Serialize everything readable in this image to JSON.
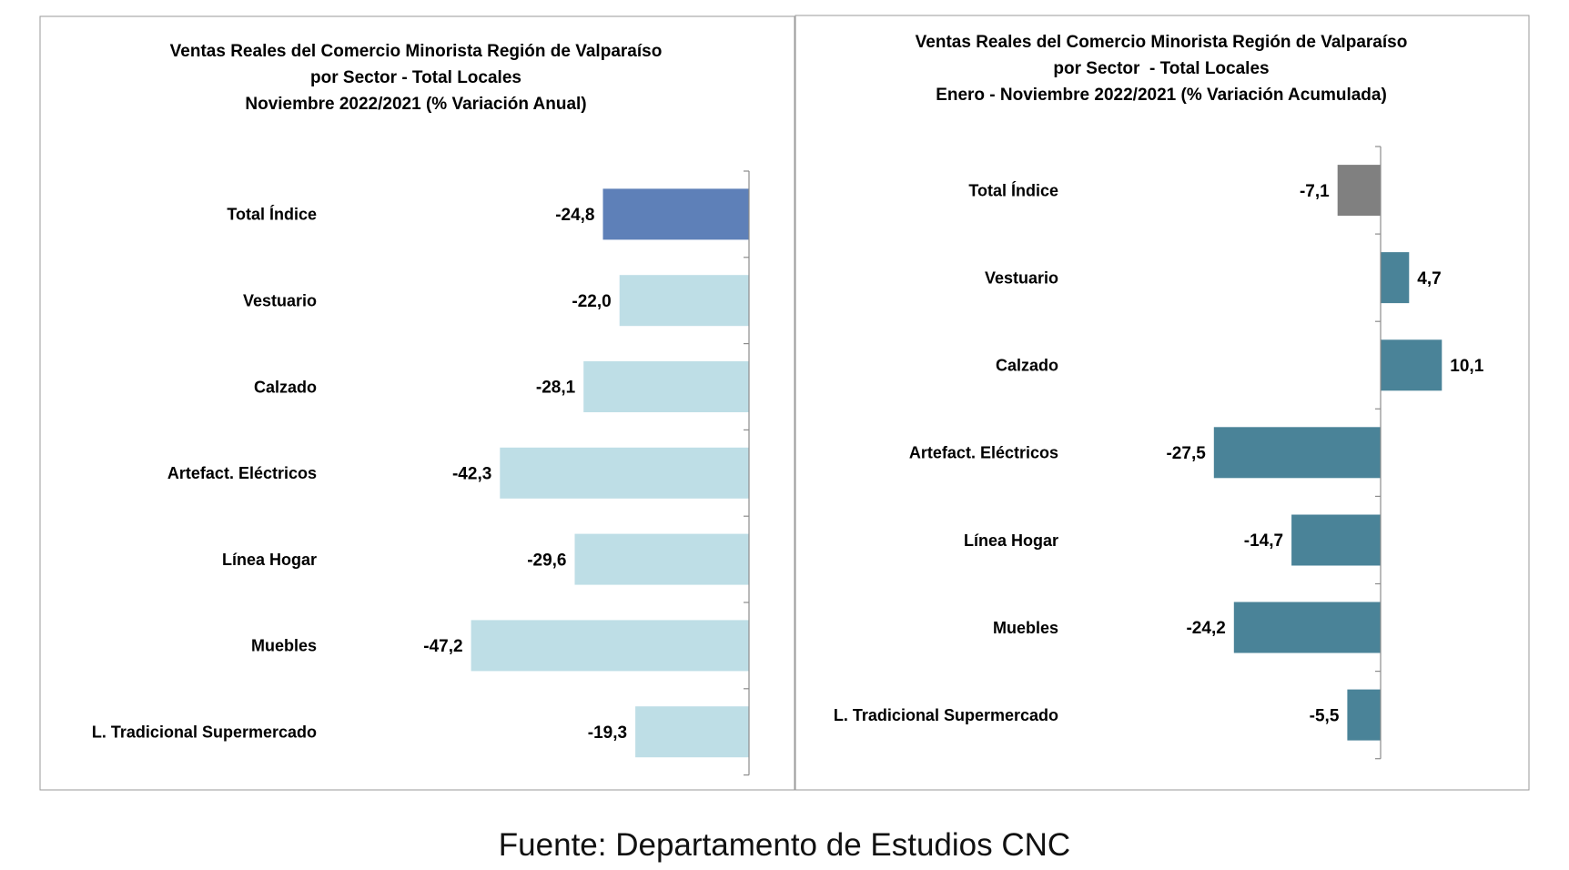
{
  "footer": {
    "source": "Fuente: Departamento de Estudios CNC"
  },
  "chart_data": [
    {
      "type": "bar",
      "orientation": "horizontal",
      "title_lines": [
        "Ventas Reales del Comercio Minorista Región de Valparaíso",
        "por Sector - Total Locales",
        "Noviembre 2022/2021 (% Variación Anual)"
      ],
      "categories": [
        "Total Índice",
        "Vestuario",
        "Calzado",
        "Artefact. Eléctricos",
        "Línea Hogar",
        "Muebles",
        "L. Tradicional Supermercado"
      ],
      "values": [
        -24.8,
        -22.0,
        -28.1,
        -42.3,
        -29.6,
        -47.2,
        -19.3
      ],
      "data_labels": [
        "-24,8",
        "-22,0",
        "-28,1",
        "-42,3",
        "-29,6",
        "-47,2",
        "-19,3"
      ],
      "bar_colors": [
        "#5E80B8",
        "#BEDEE6",
        "#BEDEE6",
        "#BEDEE6",
        "#BEDEE6",
        "#BEDEE6",
        "#BEDEE6"
      ],
      "grid": false,
      "legend": "none"
    },
    {
      "type": "bar",
      "orientation": "horizontal",
      "title_lines": [
        "Ventas Reales del Comercio Minorista Región de Valparaíso",
        "por Sector  - Total Locales",
        "Enero - Noviembre 2022/2021 (% Variación Acumulada)"
      ],
      "categories": [
        "Total Índice",
        "Vestuario",
        "Calzado",
        "Artefact. Eléctricos",
        "Línea Hogar",
        "Muebles",
        "L. Tradicional Supermercado"
      ],
      "values": [
        -7.1,
        4.7,
        10.1,
        -27.5,
        -14.7,
        -24.2,
        -5.5
      ],
      "data_labels": [
        "-7,1",
        "4,7",
        "10,1",
        "-27,5",
        "-14,7",
        "-24,2",
        "-5,5"
      ],
      "bar_colors": [
        "#808080",
        "#4A8398",
        "#4A8398",
        "#4A8398",
        "#4A8398",
        "#4A8398",
        "#4A8398"
      ],
      "grid": false,
      "legend": "none"
    }
  ]
}
